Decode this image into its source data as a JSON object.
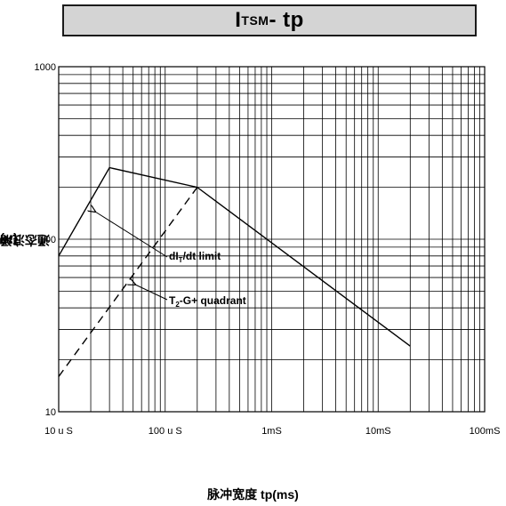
{
  "title": {
    "main": "I",
    "sub": "TSM",
    "rest": " - tp"
  },
  "ylabel": {
    "prefix": "通态浪涌电流 I",
    "sub": "TSM",
    "suffix": "(A)"
  },
  "xlabel": "脉冲宽度 tp(ms)",
  "annotations": [
    {
      "id": "didt",
      "main": "dI",
      "sub": "T",
      "rest": "/dt limit"
    },
    {
      "id": "quad",
      "main": "T",
      "sub": "2",
      "rest": "-G+ quadrant"
    }
  ],
  "chart_data": {
    "type": "line",
    "x_scale": "log",
    "y_scale": "log",
    "xlim": [
      0.01,
      100
    ],
    "ylim": [
      10,
      1000
    ],
    "x_unit": "ms",
    "x_tick_values": [
      0.01,
      0.1,
      1,
      10,
      100
    ],
    "x_tick_labels": [
      "10 u S",
      "100 u S",
      "1mS",
      "10mS",
      "100mS"
    ],
    "y_tick_values": [
      10,
      100,
      1000
    ],
    "y_tick_labels": [
      "10",
      "100",
      "1000"
    ],
    "grid": true,
    "series": [
      {
        "style": "solid",
        "x": [
          0.01,
          0.03,
          0.2,
          20
        ],
        "y": [
          80,
          260,
          200,
          24
        ]
      },
      {
        "style": "dashed",
        "x": [
          0.01,
          0.2
        ],
        "y": [
          16,
          200
        ]
      }
    ]
  }
}
